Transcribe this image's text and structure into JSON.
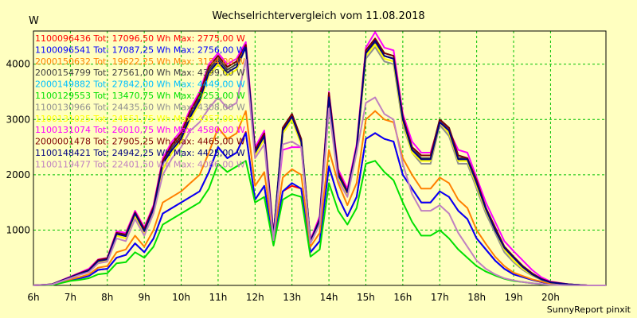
{
  "chart_data": {
    "type": "line",
    "title": "Wechselrichtervergleich vom 11.08.2018",
    "ylabel": "W",
    "xlabel": "",
    "footer": "SunnyReport pinxit",
    "x_ticks": [
      {
        "hour": 6,
        "label": "6h"
      },
      {
        "hour": 7,
        "label": "7h"
      },
      {
        "hour": 8,
        "label": "8h"
      },
      {
        "hour": 9,
        "label": "9h"
      },
      {
        "hour": 10,
        "label": "10h"
      },
      {
        "hour": 11,
        "label": "11h"
      },
      {
        "hour": 12,
        "label": "12h"
      },
      {
        "hour": 13,
        "label": "13h"
      },
      {
        "hour": 14,
        "label": "14h"
      },
      {
        "hour": 15,
        "label": "15h"
      },
      {
        "hour": 16,
        "label": "16h"
      },
      {
        "hour": 17,
        "label": "17h"
      },
      {
        "hour": 18,
        "label": "18h"
      },
      {
        "hour": 19,
        "label": "19h"
      },
      {
        "hour": 20,
        "label": "20h"
      }
    ],
    "y_ticks": [
      {
        "value": 1000,
        "label": "1000"
      },
      {
        "value": 2000,
        "label": "2000"
      },
      {
        "value": 3000,
        "label": "3000"
      },
      {
        "value": 4000,
        "label": "4000"
      }
    ],
    "xlim": [
      6,
      21.5
    ],
    "ylim": [
      0,
      4600
    ],
    "grid": true,
    "legend_position": "top-left",
    "x": [
      6.0,
      6.5,
      7.0,
      7.25,
      7.5,
      7.75,
      8.0,
      8.25,
      8.5,
      8.75,
      9.0,
      9.25,
      9.5,
      9.75,
      10.0,
      10.25,
      10.5,
      10.75,
      11.0,
      11.25,
      11.5,
      11.75,
      12.0,
      12.25,
      12.5,
      12.75,
      13.0,
      13.25,
      13.5,
      13.75,
      14.0,
      14.25,
      14.5,
      14.75,
      15.0,
      15.25,
      15.5,
      15.75,
      16.0,
      16.25,
      16.5,
      16.75,
      17.0,
      17.25,
      17.5,
      17.75,
      18.0,
      18.25,
      18.5,
      18.75,
      19.0,
      19.25,
      19.5,
      19.75,
      20.0,
      20.5,
      21.0,
      21.5
    ],
    "series": [
      {
        "name": "1100096436",
        "legend_label": "1100096436 Tot: 17096,50 Wh Max: 2775,00 W",
        "color": "#ff0000",
        "values": [
          0,
          10,
          100,
          130,
          170,
          280,
          300,
          500,
          550,
          760,
          600,
          850,
          1300,
          1400,
          1500,
          1600,
          1700,
          2050,
          2500,
          2300,
          2400,
          2775,
          1550,
          1800,
          750,
          1700,
          1800,
          1750,
          600,
          800,
          2150,
          1600,
          1250,
          1600,
          2650,
          2750,
          2650,
          2600,
          2000,
          1750,
          1500,
          1500,
          1700,
          1600,
          1350,
          1200,
          850,
          650,
          450,
          300,
          200,
          150,
          100,
          60,
          30,
          10,
          0,
          0
        ]
      },
      {
        "name": "1100096541",
        "legend_label": "1100096541 Tot: 17087,25 Wh Max: 2756,00 W",
        "color": "#0000ff",
        "values": [
          0,
          10,
          100,
          130,
          170,
          280,
          300,
          500,
          550,
          760,
          600,
          850,
          1300,
          1400,
          1500,
          1600,
          1700,
          2050,
          2500,
          2300,
          2400,
          2756,
          1550,
          1800,
          750,
          1700,
          1850,
          1750,
          600,
          800,
          2150,
          1600,
          1250,
          1600,
          2650,
          2756,
          2650,
          2600,
          2000,
          1750,
          1500,
          1500,
          1700,
          1600,
          1350,
          1200,
          850,
          650,
          450,
          300,
          200,
          150,
          100,
          60,
          30,
          10,
          0,
          0
        ]
      },
      {
        "name": "2000150632",
        "legend_label": "2000150632 Tot: 19622,25 Wh Max: 3154,00 W",
        "color": "#ff8000",
        "values": [
          0,
          10,
          110,
          150,
          200,
          320,
          350,
          600,
          650,
          900,
          700,
          1000,
          1500,
          1600,
          1700,
          1850,
          2000,
          2400,
          2850,
          2650,
          2750,
          3154,
          1800,
          2050,
          850,
          1950,
          2100,
          2000,
          700,
          950,
          2450,
          1850,
          1450,
          1850,
          3000,
          3154,
          3000,
          2950,
          2300,
          2000,
          1750,
          1750,
          1950,
          1850,
          1550,
          1400,
          1000,
          750,
          520,
          350,
          230,
          170,
          110,
          70,
          35,
          10,
          0,
          0
        ]
      },
      {
        "name": "2000154799",
        "legend_label": "2000154799 Tot: 27561,00 Wh Max: 4399,00 W",
        "color": "#404040",
        "values": [
          0,
          20,
          150,
          220,
          280,
          450,
          480,
          950,
          900,
          1300,
          1000,
          1400,
          2200,
          2500,
          2700,
          3100,
          3400,
          3900,
          4100,
          3900,
          4000,
          4350,
          2400,
          2700,
          900,
          2800,
          3100,
          2600,
          800,
          1200,
          3450,
          2000,
          1700,
          2500,
          4200,
          4399,
          4150,
          4100,
          3000,
          2500,
          2300,
          2300,
          3000,
          2800,
          2300,
          2300,
          1850,
          1400,
          1050,
          700,
          520,
          350,
          220,
          120,
          60,
          20,
          0,
          0
        ]
      },
      {
        "name": "2000149882",
        "legend_label": "2000149882 Tot: 27842,00 Wh Max: 4449,00 W",
        "color": "#00c0ff",
        "values": [
          0,
          20,
          150,
          220,
          280,
          460,
          490,
          950,
          920,
          1320,
          1020,
          1420,
          2250,
          2550,
          2750,
          3150,
          3450,
          3950,
          4150,
          3950,
          4050,
          4350,
          2450,
          2750,
          900,
          2850,
          3100,
          2650,
          800,
          1200,
          3480,
          2050,
          1700,
          2500,
          4250,
          4449,
          4200,
          4150,
          3050,
          2500,
          2350,
          2350,
          3000,
          2850,
          2350,
          2300,
          1900,
          1400,
          1050,
          700,
          520,
          350,
          220,
          120,
          60,
          20,
          0,
          0
        ]
      },
      {
        "name": "1100129553",
        "legend_label": "1100129553 Tot: 13470,75 Wh Max: 2253,00 W",
        "color": "#00e000",
        "values": [
          0,
          5,
          80,
          100,
          130,
          200,
          220,
          400,
          420,
          600,
          500,
          700,
          1100,
          1200,
          1300,
          1400,
          1500,
          1750,
          2200,
          2050,
          2150,
          2253,
          1500,
          1600,
          720,
          1550,
          1650,
          1600,
          520,
          650,
          1850,
          1350,
          1100,
          1400,
          2200,
          2253,
          2050,
          1900,
          1500,
          1150,
          900,
          900,
          1000,
          850,
          650,
          500,
          350,
          250,
          180,
          120,
          80,
          60,
          40,
          20,
          10,
          5,
          0,
          0
        ]
      },
      {
        "name": "1100130966",
        "legend_label": "1100130966 Tot: 24435,50 Wh Max: 4308,00 W",
        "color": "#909090",
        "values": [
          0,
          15,
          140,
          200,
          260,
          420,
          450,
          900,
          850,
          1250,
          950,
          1350,
          2100,
          2400,
          2600,
          3000,
          3300,
          3800,
          4000,
          3800,
          3900,
          4308,
          2350,
          2650,
          850,
          2750,
          3000,
          2550,
          780,
          1150,
          3350,
          1950,
          1650,
          2450,
          4100,
          4308,
          4050,
          4000,
          2900,
          2400,
          2200,
          2200,
          2900,
          2700,
          2200,
          2200,
          1750,
          1300,
          950,
          600,
          420,
          280,
          180,
          100,
          50,
          15,
          0,
          0
        ]
      },
      {
        "name": "1100131025",
        "legend_label": "1100131025 Tot: 24551,75 Wh Max: 4357,00 W",
        "color": "#ffff00",
        "values": [
          0,
          15,
          140,
          200,
          260,
          420,
          450,
          900,
          850,
          1250,
          950,
          1350,
          2100,
          2400,
          2600,
          3000,
          3300,
          3800,
          4000,
          3800,
          3900,
          4357,
          2350,
          2650,
          850,
          2750,
          3000,
          2550,
          780,
          1150,
          3350,
          1950,
          1650,
          2450,
          4150,
          4357,
          4100,
          4050,
          2950,
          2400,
          2250,
          2250,
          2950,
          2750,
          2250,
          2250,
          1800,
          1350,
          1000,
          650,
          450,
          300,
          190,
          110,
          55,
          15,
          0,
          0
        ]
      },
      {
        "name": "1100131074",
        "legend_label": "1100131074 Tot: 26010,75 Wh Max: 4580,00 W",
        "color": "#ff00ff",
        "values": [
          0,
          20,
          160,
          230,
          300,
          470,
          500,
          980,
          950,
          1350,
          1050,
          1450,
          2300,
          2600,
          2800,
          3200,
          3500,
          4000,
          4200,
          4000,
          4100,
          4400,
          2500,
          2800,
          950,
          2450,
          2500,
          2500,
          820,
          1250,
          3500,
          2100,
          1750,
          2550,
          4300,
          4580,
          4300,
          4250,
          3100,
          2600,
          2400,
          2400,
          2950,
          2800,
          2450,
          2400,
          1950,
          1500,
          1150,
          800,
          620,
          450,
          280,
          150,
          70,
          20,
          0,
          0
        ]
      },
      {
        "name": "2000001478",
        "legend_label": "2000001478 Tot: 27905,25 Wh Max: 4465,00 W",
        "color": "#800000",
        "values": [
          0,
          20,
          150,
          220,
          280,
          460,
          490,
          950,
          920,
          1320,
          1020,
          1420,
          2250,
          2550,
          2750,
          3150,
          3450,
          3950,
          4150,
          3950,
          4050,
          4350,
          2450,
          2750,
          900,
          2850,
          3100,
          2650,
          800,
          1200,
          3480,
          2050,
          1700,
          2500,
          4250,
          4465,
          4200,
          4150,
          3050,
          2500,
          2350,
          2350,
          3000,
          2850,
          2350,
          2300,
          1900,
          1400,
          1050,
          700,
          520,
          350,
          220,
          120,
          60,
          20,
          0,
          0
        ]
      },
      {
        "name": "1100148421",
        "legend_label": "1100148421 Tot: 24942,25 Wh Max: 4425,00 W",
        "color": "#000080",
        "values": [
          0,
          18,
          145,
          210,
          270,
          440,
          470,
          930,
          890,
          1300,
          980,
          1380,
          2200,
          2450,
          2650,
          3050,
          3350,
          3850,
          4050,
          3850,
          3950,
          4300,
          2400,
          2700,
          880,
          2800,
          3050,
          2600,
          790,
          1180,
          3400,
          2000,
          1680,
          2480,
          4200,
          4425,
          4150,
          4100,
          3000,
          2450,
          2280,
          2280,
          2950,
          2800,
          2280,
          2280,
          1850,
          1380,
          1000,
          680,
          500,
          330,
          200,
          110,
          55,
          18,
          0,
          0
        ]
      },
      {
        "name": "1100119477",
        "legend_label": "1100119477 Tot: 22401,50 Wh Max: 4086,00 W",
        "color": "#c080c0",
        "values": [
          0,
          15,
          130,
          190,
          240,
          400,
          430,
          850,
          800,
          1200,
          900,
          1300,
          2000,
          2300,
          2500,
          2800,
          2950,
          3200,
          3400,
          3200,
          3300,
          4086,
          2300,
          2550,
          820,
          2550,
          2600,
          2500,
          760,
          1100,
          3200,
          1900,
          1600,
          2400,
          3300,
          3400,
          3100,
          3000,
          2200,
          1650,
          1350,
          1350,
          1450,
          1300,
          950,
          700,
          450,
          300,
          200,
          130,
          90,
          60,
          40,
          25,
          10,
          5,
          0,
          0
        ]
      }
    ]
  }
}
